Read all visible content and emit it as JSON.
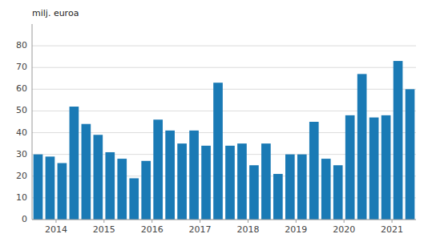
{
  "chart_data": {
    "type": "bar",
    "y_label": "milj. euroa",
    "categories": [
      null,
      "2014",
      null,
      null,
      null,
      "2015",
      null,
      null,
      null,
      "2016",
      null,
      null,
      null,
      "2017",
      null,
      null,
      null,
      "2018",
      null,
      null,
      null,
      "2019",
      null,
      null,
      null,
      "2020",
      null,
      null,
      null,
      "2021",
      null,
      null
    ],
    "values": [
      30,
      29,
      26,
      52,
      44,
      39,
      31,
      28,
      19,
      27,
      46,
      41,
      35,
      41,
      34,
      63,
      34,
      35,
      25,
      35,
      21,
      30,
      30,
      45,
      28,
      25,
      48,
      67,
      47,
      48,
      73,
      60
    ],
    "color": "#1a7ab5",
    "ylim": [
      0,
      90
    ],
    "yticks": [
      0,
      10,
      20,
      30,
      40,
      50,
      60,
      70,
      80
    ],
    "grid": true
  }
}
